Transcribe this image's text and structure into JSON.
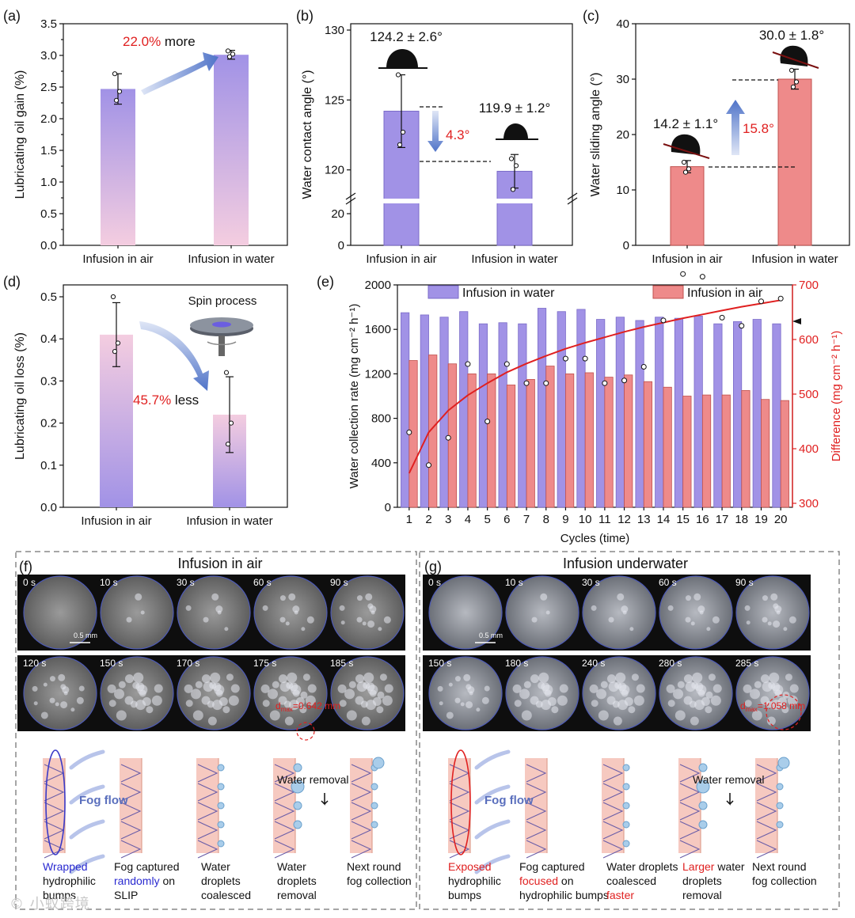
{
  "colors": {
    "purple": "#a192e6",
    "purple_light": "#f2c9dc",
    "red": "#ee8a8a",
    "red_edge": "#c0504d",
    "accent_red": "#e02020",
    "blue": "#4f73c8"
  },
  "panel_a": {
    "label": "(a)",
    "annotation": {
      "value": "22.0%",
      "text": " more"
    }
  },
  "panel_b": {
    "label": "(b)",
    "annotations": [
      "124.2 ± 2.6°",
      "119.9 ± 1.2°",
      "4.3°"
    ]
  },
  "panel_c": {
    "label": "(c)",
    "annotations": [
      "14.2 ± 1.1°",
      "30.0 ± 1.8°",
      "15.8°"
    ]
  },
  "panel_d": {
    "label": "(d)",
    "inset_title": "Spin process",
    "annotation": {
      "value": "45.7%",
      "text": " less"
    }
  },
  "panel_e": {
    "label": "(e)"
  },
  "chart_data": [
    {
      "id": "a",
      "type": "bar",
      "categories": [
        "Infusion in air",
        "Infusion in water"
      ],
      "values": [
        2.47,
        3.01
      ],
      "errors": [
        0.24,
        0.07
      ],
      "points": [
        [
          2.71,
          2.43,
          2.29
        ],
        [
          3.07,
          3.02,
          2.98
        ]
      ],
      "ylabel": "Lubricating oil gain (%)",
      "ylim": [
        0,
        3.5
      ],
      "yticks": [
        "0.0",
        "0.5",
        "1.0",
        "1.5",
        "2.0",
        "2.5",
        "3.0",
        "3.5"
      ]
    },
    {
      "id": "b",
      "type": "bar",
      "categories": [
        "Infusion in air",
        "Infusion in water"
      ],
      "values": [
        124.2,
        119.9
      ],
      "errors": [
        2.6,
        1.2
      ],
      "points": [
        [
          126.8,
          122.7,
          121.8
        ],
        [
          120.8,
          120.3,
          118.6
        ]
      ],
      "ylabel": "Water contact angle (°)",
      "ylim": [
        0,
        130
      ],
      "axis_break": [
        20,
        118
      ],
      "yticks": [
        "0",
        "20",
        "120",
        "125",
        "130"
      ]
    },
    {
      "id": "c",
      "type": "bar",
      "categories": [
        "Infusion in air",
        "Infusion in water"
      ],
      "values": [
        14.2,
        30.0
      ],
      "errors": [
        1.1,
        1.8
      ],
      "points": [
        [
          15.0,
          13.8,
          13.2
        ],
        [
          31.6,
          29.5,
          28.6
        ]
      ],
      "ylabel": "Water sliding angle (°)",
      "ylim": [
        0,
        40
      ],
      "yticks": [
        "0",
        "10",
        "20",
        "30",
        "40"
      ]
    },
    {
      "id": "d",
      "type": "bar",
      "categories": [
        "Infusion in air",
        "Infusion in water"
      ],
      "values": [
        0.41,
        0.22
      ],
      "errors": [
        0.076,
        0.09
      ],
      "points": [
        [
          0.5,
          0.39,
          0.37
        ],
        [
          0.32,
          0.2,
          0.15
        ]
      ],
      "ylabel": "Lubricating oil loss (%)",
      "ylim": [
        0,
        0.5
      ],
      "yticks": [
        "0.0",
        "0.1",
        "0.2",
        "0.3",
        "0.4",
        "0.5"
      ]
    },
    {
      "id": "e",
      "type": "bar",
      "xlabel": "Cycles (time)",
      "ylabel_left": "Water collection rate (mg cm⁻² h⁻¹)",
      "ylabel_right": "Difference (mg cm⁻² h⁻¹)",
      "ylim_left": [
        0,
        2000
      ],
      "ylim_right": [
        300,
        700
      ],
      "yticks_left": [
        "0",
        "400",
        "800",
        "1200",
        "1600",
        "2000"
      ],
      "yticks_right": [
        "300",
        "400",
        "500",
        "600",
        "700"
      ],
      "categories": [
        "1",
        "2",
        "3",
        "4",
        "5",
        "6",
        "7",
        "8",
        "9",
        "10",
        "11",
        "12",
        "13",
        "14",
        "15",
        "16",
        "17",
        "18",
        "19",
        "20"
      ],
      "series": [
        {
          "name": "Infusion in water",
          "values": [
            1750,
            1730,
            1710,
            1760,
            1650,
            1660,
            1650,
            1790,
            1760,
            1780,
            1690,
            1710,
            1680,
            1710,
            1700,
            1720,
            1650,
            1670,
            1690,
            1650
          ]
        },
        {
          "name": "Infusion in air",
          "values": [
            1320,
            1370,
            1290,
            1200,
            1200,
            1100,
            1150,
            1270,
            1200,
            1210,
            1170,
            1190,
            1130,
            1080,
            1000,
            1010,
            1010,
            1050,
            970,
            960
          ]
        },
        {
          "name": "Difference",
          "type": "scatter",
          "axis": "right",
          "values": [
            430,
            370,
            420,
            555,
            450,
            555,
            520,
            520,
            565,
            565,
            520,
            525,
            550,
            635,
            720,
            715,
            640,
            625,
            670,
            675
          ]
        },
        {
          "name": "Difference fit",
          "type": "line",
          "axis": "right",
          "values": [
            355,
            430,
            470,
            498,
            520,
            540,
            556,
            570,
            583,
            594,
            604,
            614,
            623,
            631,
            639,
            646,
            653,
            660,
            666,
            672
          ]
        }
      ]
    }
  ],
  "panel_f": {
    "label": "(f)",
    "title": "Infusion in air",
    "row1_times": [
      "0 s",
      "10 s",
      "30 s",
      "60 s",
      "90 s"
    ],
    "row2_times": [
      "120 s",
      "150 s",
      "170 s",
      "175 s",
      "185 s"
    ],
    "scale_bar": "0.5 mm",
    "dmax": "d",
    "dmax_sub": "max",
    "dmax_value": "=0.642 mm",
    "fog_flow": "Fog flow",
    "water_removal": "Water removal",
    "captions": [
      [
        "Wrapped",
        "hydrophilic",
        "bumps"
      ],
      [
        "Fog captured",
        "randomly",
        " on",
        "SLIP"
      ],
      [
        "Water",
        "droplets",
        "coalesced"
      ],
      [
        "Water",
        "droplets",
        "removal"
      ],
      [
        "Next round",
        "fog collection"
      ]
    ]
  },
  "panel_g": {
    "label": "(g)",
    "title": "Infusion underwater",
    "row1_times": [
      "0 s",
      "10 s",
      "30 s",
      "60 s",
      "90 s"
    ],
    "row2_times": [
      "150 s",
      "180 s",
      "240 s",
      "280 s",
      "285 s"
    ],
    "scale_bar": "0.5 mm",
    "dmax": "d",
    "dmax_sub": "max",
    "dmax_value": "=1.058 mm",
    "fog_flow": "Fog flow",
    "water_removal": "Water removal",
    "captions": [
      [
        "Exposed",
        "hydrophilic",
        "bumps"
      ],
      [
        "Fog captured",
        "focused",
        " on",
        "hydrophilic bumps"
      ],
      [
        "Water droplets",
        "coalesced",
        "faster"
      ],
      [
        "Larger",
        " water",
        "droplets",
        "removal"
      ],
      [
        "Next round",
        "fog collection"
      ]
    ]
  },
  "watermark": "© 小蚁跨境"
}
